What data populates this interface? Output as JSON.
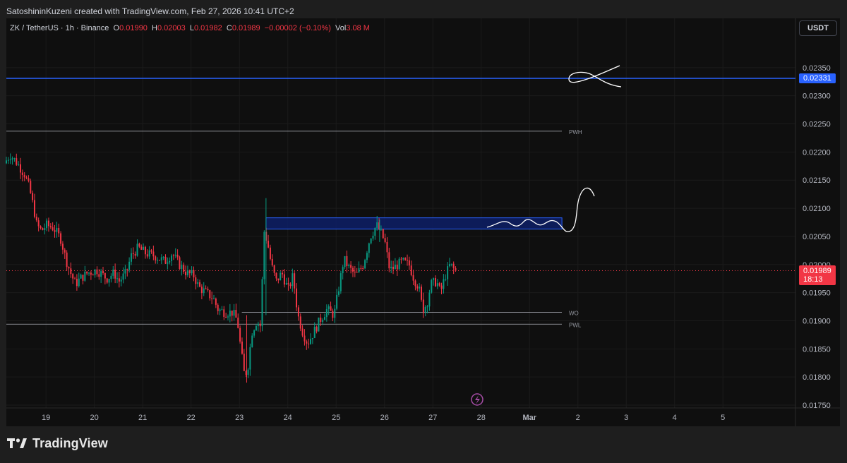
{
  "header": {
    "credit": "SatoshininKuzeni created with TradingView.com, Feb 27, 2026 10:41 UTC+2"
  },
  "legend": {
    "symbol": "ZK / TetherUS · 1h · Binance",
    "o_label": "O",
    "o_value": "0.01990",
    "h_label": "H",
    "h_value": "0.02003",
    "l_label": "L",
    "l_value": "0.01982",
    "c_label": "C",
    "c_value": "0.01989",
    "change": "−0.00002 (−0.10%)",
    "vol_label": "Vol",
    "vol_value": "3.08 M"
  },
  "currency_button": "USDT",
  "footer": {
    "brand": "TradingView"
  },
  "colors": {
    "up": "#089981",
    "down": "#f23645",
    "blue_line": "#2962ff",
    "zone_fill": "#0d1f66",
    "zone_border": "#2962ff",
    "background": "#0f0f0f"
  },
  "chart_data": {
    "type": "candlestick",
    "title": "",
    "ylim": [
      0.01745,
      0.02405
    ],
    "y_ticks": [
      "0.01750",
      "0.01800",
      "0.01850",
      "0.01900",
      "0.01950",
      "0.02000",
      "0.02050",
      "0.02100",
      "0.02150",
      "0.02200",
      "0.02250",
      "0.02300",
      "0.02350"
    ],
    "x_ticks": [
      {
        "label": "19",
        "day": 19
      },
      {
        "label": "20",
        "day": 20
      },
      {
        "label": "21",
        "day": 21
      },
      {
        "label": "22",
        "day": 22
      },
      {
        "label": "23",
        "day": 23
      },
      {
        "label": "24",
        "day": 24
      },
      {
        "label": "25",
        "day": 25
      },
      {
        "label": "26",
        "day": 26
      },
      {
        "label": "27",
        "day": 27
      },
      {
        "label": "28",
        "day": 28
      },
      {
        "label": "Mar",
        "day": 29
      },
      {
        "label": "2",
        "day": 30
      },
      {
        "label": "3",
        "day": 31
      },
      {
        "label": "4",
        "day": 32
      },
      {
        "label": "5",
        "day": 33
      }
    ],
    "x_range": [
      18.18,
      34.5
    ],
    "horizontal_lines": [
      {
        "label": "",
        "price": 0.02331,
        "color": "#2962ff",
        "full_width": true
      },
      {
        "label": "PWH",
        "price": 0.02237,
        "color": "#9598a1",
        "full_width": false
      },
      {
        "label": "WO",
        "price": 0.01915,
        "color": "#9598a1",
        "full_width": false,
        "start_day": 23.05
      },
      {
        "label": "PWL",
        "price": 0.01894,
        "color": "#9598a1",
        "full_width": false
      }
    ],
    "current_price": {
      "value": "0.01989",
      "countdown": "18:13",
      "price": 0.01989
    },
    "blue_price_label": {
      "value": "0.02331",
      "price": 0.02331
    },
    "zone": {
      "top": 0.02083,
      "bottom": 0.02063,
      "start_day": 23.55,
      "end_day": 29.67
    },
    "candle_anchors": [
      [
        18.18,
        0.0218
      ],
      [
        18.3,
        0.02195
      ],
      [
        18.45,
        0.0218
      ],
      [
        18.6,
        0.0216
      ],
      [
        18.7,
        0.02135
      ],
      [
        18.8,
        0.02095
      ],
      [
        18.85,
        0.0207
      ],
      [
        18.95,
        0.0206
      ],
      [
        19.05,
        0.0207
      ],
      [
        19.2,
        0.02065
      ],
      [
        19.35,
        0.02045
      ],
      [
        19.45,
        0.0201
      ],
      [
        19.55,
        0.01985
      ],
      [
        19.65,
        0.01965
      ],
      [
        19.75,
        0.01975
      ],
      [
        19.9,
        0.01985
      ],
      [
        20.1,
        0.0199
      ],
      [
        20.3,
        0.01975
      ],
      [
        20.45,
        0.01985
      ],
      [
        20.55,
        0.0197
      ],
      [
        20.7,
        0.01985
      ],
      [
        20.8,
        0.02015
      ],
      [
        20.95,
        0.0203
      ],
      [
        21.1,
        0.0202
      ],
      [
        21.3,
        0.02015
      ],
      [
        21.5,
        0.02005
      ],
      [
        21.65,
        0.0202
      ],
      [
        21.8,
        0.02
      ],
      [
        21.95,
        0.01985
      ],
      [
        22.1,
        0.0198
      ],
      [
        22.2,
        0.0196
      ],
      [
        22.35,
        0.0195
      ],
      [
        22.5,
        0.0194
      ],
      [
        22.6,
        0.0192
      ],
      [
        22.75,
        0.01915
      ],
      [
        22.9,
        0.01915
      ],
      [
        23.0,
        0.019
      ],
      [
        23.07,
        0.0185
      ],
      [
        23.15,
        0.018
      ],
      [
        23.22,
        0.0182
      ],
      [
        23.3,
        0.0188
      ],
      [
        23.4,
        0.019
      ],
      [
        23.48,
        0.0189
      ],
      [
        23.55,
        0.0206
      ],
      [
        23.62,
        0.0204
      ],
      [
        23.7,
        0.02
      ],
      [
        23.8,
        0.0197
      ],
      [
        23.92,
        0.01985
      ],
      [
        24.05,
        0.01955
      ],
      [
        24.15,
        0.0198
      ],
      [
        24.25,
        0.0191
      ],
      [
        24.35,
        0.0188
      ],
      [
        24.45,
        0.0186
      ],
      [
        24.55,
        0.01875
      ],
      [
        24.7,
        0.019
      ],
      [
        24.85,
        0.0192
      ],
      [
        25.0,
        0.0191
      ],
      [
        25.1,
        0.0196
      ],
      [
        25.2,
        0.0201
      ],
      [
        25.3,
        0.01995
      ],
      [
        25.45,
        0.0198
      ],
      [
        25.6,
        0.02
      ],
      [
        25.75,
        0.0205
      ],
      [
        25.88,
        0.0207
      ],
      [
        25.95,
        0.0206
      ],
      [
        26.05,
        0.0204
      ],
      [
        26.15,
        0.0199
      ],
      [
        26.25,
        0.01995
      ],
      [
        26.4,
        0.02005
      ],
      [
        26.55,
        0.02
      ],
      [
        26.65,
        0.01975
      ],
      [
        26.75,
        0.0196
      ],
      [
        26.83,
        0.0192
      ],
      [
        26.92,
        0.0193
      ],
      [
        27.0,
        0.01965
      ],
      [
        27.12,
        0.0197
      ],
      [
        27.2,
        0.0195
      ],
      [
        27.3,
        0.0198
      ],
      [
        27.4,
        0.02
      ],
      [
        27.5,
        0.01989
      ]
    ],
    "notes": "Hand-drawn white annotation strokes on chart; lightning icon near x=27"
  }
}
